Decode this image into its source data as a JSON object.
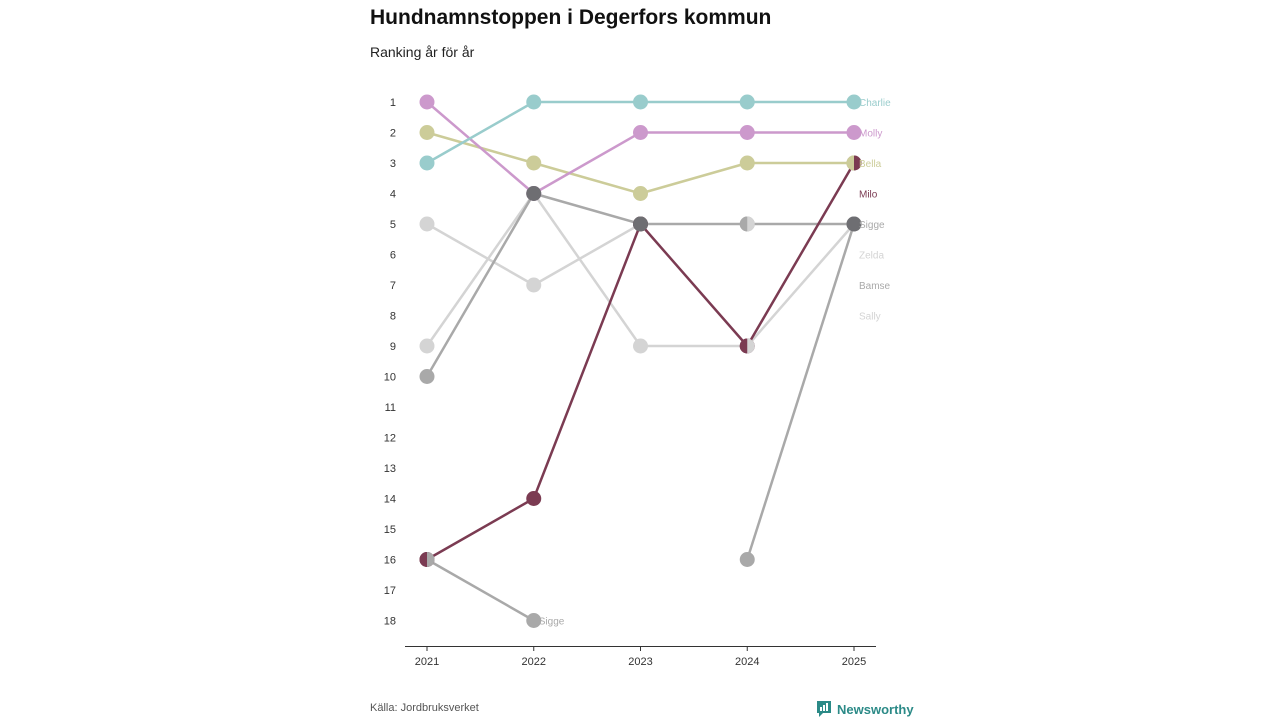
{
  "page": {
    "title": "Hundnamnstoppen i Degerfors kommun",
    "subtitle": "Ranking år för år",
    "source": "Källa: Jordbruksverket",
    "brand": "Newsworthy",
    "brand_color": "#2b8a87"
  },
  "chart_data": {
    "type": "line",
    "variant": "bump",
    "title": "Hundnamnstoppen i Degerfors kommun",
    "subtitle": "Ranking år för år",
    "xlabel": "",
    "ylabel": "",
    "x": [
      "2021",
      "2022",
      "2023",
      "2024",
      "2025"
    ],
    "y_ticks": [
      "1",
      "2",
      "3",
      "4",
      "5",
      "6",
      "7",
      "8",
      "9",
      "10",
      "11",
      "12",
      "13",
      "14",
      "15",
      "16",
      "17",
      "18"
    ],
    "ylim": [
      1,
      18
    ],
    "y_inverted": true,
    "grid": false,
    "legend": "labels at line end (right)",
    "series": [
      {
        "name": "Sally",
        "color": "#d4d4d4",
        "values": [
          5,
          7,
          5,
          null,
          null
        ]
      },
      {
        "name": "Zelda",
        "color": "#d4d4d4",
        "values": [
          9,
          4,
          9,
          9,
          5
        ]
      },
      {
        "name": "Bamse",
        "color": "#a9a9a9",
        "values": [
          16,
          18,
          null,
          null,
          null
        ],
        "end_label": "Sigge"
      },
      {
        "name": "Sigge",
        "color": "#a9a9a9",
        "values": [
          10,
          4,
          5,
          5,
          5
        ]
      },
      {
        "name": "Sigge",
        "color": "#a9a9a9",
        "values": [
          null,
          null,
          null,
          16,
          5
        ]
      },
      {
        "name": "Milo",
        "color": "#7b3b52",
        "values": [
          16,
          14,
          5,
          9,
          3
        ]
      },
      {
        "name": "Bella",
        "color": "#cccc99",
        "values": [
          2,
          3,
          4,
          3,
          3
        ]
      },
      {
        "name": "Molly",
        "color": "#cc99cc",
        "values": [
          1,
          4,
          2,
          2,
          2
        ]
      },
      {
        "name": "Charlie",
        "color": "#99cccc",
        "values": [
          3,
          1,
          1,
          1,
          1
        ]
      }
    ],
    "overlap_points": [
      {
        "x": "2022",
        "y": 4,
        "color": "#6e6e72"
      },
      {
        "x": "2023",
        "y": 5,
        "color": "#6e6e72"
      },
      {
        "x": "2025",
        "y": 5,
        "color": "#6e6e72"
      }
    ],
    "split_points": [
      {
        "x": "2021",
        "y": 16,
        "left": "#7b3b52",
        "right": "#a9a9a9"
      },
      {
        "x": "2024",
        "y": 5,
        "left": "#a9a9a9",
        "right": "#d4d4d4"
      },
      {
        "x": "2024",
        "y": 9,
        "left": "#7b3b52",
        "right": "#d4d4d4"
      },
      {
        "x": "2025",
        "y": 3,
        "left": "#cccc99",
        "right": "#7b3b52"
      }
    ],
    "end_labels": [
      {
        "name": "Charlie",
        "rank": 1,
        "color": "#99cccc"
      },
      {
        "name": "Molly",
        "rank": 2,
        "color": "#cc99cc"
      },
      {
        "name": "Bella",
        "rank": 3,
        "color": "#cccc99"
      },
      {
        "name": "Milo",
        "rank": 4,
        "color": "#7b3b52"
      },
      {
        "name": "Sigge",
        "rank": 5,
        "color": "#a9a9a9"
      },
      {
        "name": "Zelda",
        "rank": 6,
        "color": "#d4d4d4"
      },
      {
        "name": "Bamse",
        "rank": 7,
        "color": "#a9a9a9"
      },
      {
        "name": "Sally",
        "rank": 8,
        "color": "#d4d4d4"
      }
    ],
    "inline_labels": [
      {
        "name": "Sigge",
        "x": "2022",
        "y": 18,
        "color": "#a9a9a9"
      }
    ]
  }
}
